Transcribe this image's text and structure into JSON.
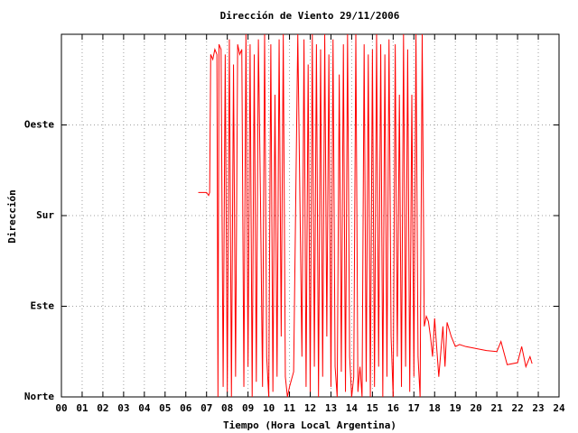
{
  "chart_data": {
    "type": "line",
    "title": "Dirección de Viento 29/11/2006",
    "x_label": "Tiempo (Hora Local Argentina)",
    "y_label": "Dirección",
    "xlim": [
      0,
      24
    ],
    "ylim": [
      0,
      360
    ],
    "xticks": [
      {
        "value": 0,
        "label": "00"
      },
      {
        "value": 1,
        "label": "01"
      },
      {
        "value": 2,
        "label": "02"
      },
      {
        "value": 3,
        "label": "03"
      },
      {
        "value": 4,
        "label": "04"
      },
      {
        "value": 5,
        "label": "05"
      },
      {
        "value": 6,
        "label": "06"
      },
      {
        "value": 7,
        "label": "07"
      },
      {
        "value": 8,
        "label": "08"
      },
      {
        "value": 9,
        "label": "09"
      },
      10,
      11,
      12,
      13,
      14,
      15,
      16,
      17,
      18,
      19,
      20,
      21,
      22,
      23,
      24
    ],
    "yticks": [
      {
        "value": 0,
        "label": "Norte"
      },
      {
        "value": 90,
        "label": "Este"
      },
      {
        "value": 180,
        "label": "Sur"
      },
      {
        "value": 270,
        "label": "Oeste"
      }
    ],
    "grid": true,
    "x": [
      6.6,
      7.0,
      7.1,
      7.15,
      7.2,
      7.3,
      7.4,
      7.5,
      7.55,
      7.6,
      7.7,
      7.8,
      7.9,
      8.0,
      8.1,
      8.2,
      8.3,
      8.4,
      8.5,
      8.6,
      8.7,
      8.8,
      8.9,
      9.0,
      9.1,
      9.2,
      9.3,
      9.4,
      9.5,
      9.6,
      9.7,
      9.8,
      9.9,
      10.0,
      10.1,
      10.2,
      10.3,
      10.4,
      10.5,
      10.6,
      10.7,
      10.8,
      10.9,
      11.0,
      11.2,
      11.4,
      11.6,
      11.7,
      11.8,
      11.9,
      12.0,
      12.1,
      12.2,
      12.3,
      12.4,
      12.5,
      12.6,
      12.7,
      12.8,
      12.9,
      13.0,
      13.1,
      13.2,
      13.3,
      13.4,
      13.5,
      13.6,
      13.7,
      13.8,
      13.9,
      14.0,
      14.1,
      14.2,
      14.3,
      14.4,
      14.5,
      14.6,
      14.7,
      14.8,
      14.9,
      15.0,
      15.1,
      15.2,
      15.3,
      15.4,
      15.5,
      15.6,
      15.7,
      15.8,
      15.9,
      16.0,
      16.1,
      16.2,
      16.3,
      16.4,
      16.5,
      16.6,
      16.7,
      16.8,
      16.9,
      17.0,
      17.1,
      17.2,
      17.3,
      17.4,
      17.5,
      17.6,
      17.7,
      17.8,
      17.9,
      18.0,
      18.2,
      18.4,
      18.5,
      18.6,
      18.8,
      19.0,
      19.2,
      19.5,
      20.0,
      20.5,
      21.0,
      21.2,
      21.5,
      22.0,
      22.2,
      22.4,
      22.6,
      22.7
    ],
    "series": [
      {
        "color": "#ff0000",
        "values": [
          203,
          203,
          200,
          203,
          340,
          335,
          345,
          340,
          0,
          350,
          345,
          10,
          340,
          5,
          355,
          0,
          330,
          20,
          350,
          340,
          345,
          10,
          360,
          30,
          350,
          0,
          340,
          15,
          355,
          200,
          10,
          360,
          40,
          0,
          350,
          5,
          300,
          20,
          355,
          60,
          360,
          20,
          0,
          10,
          25,
          360,
          40,
          355,
          10,
          330,
          5,
          360,
          30,
          350,
          0,
          345,
          20,
          360,
          60,
          340,
          10,
          355,
          30,
          0,
          320,
          25,
          350,
          5,
          360,
          40,
          0,
          20,
          360,
          5,
          30,
          0,
          350,
          15,
          340,
          0,
          345,
          10,
          360,
          30,
          350,
          0,
          340,
          20,
          355,
          60,
          0,
          350,
          40,
          300,
          10,
          360,
          30,
          345,
          5,
          300,
          20,
          360,
          40,
          0,
          360,
          70,
          80,
          75,
          60,
          40,
          78,
          20,
          70,
          30,
          74,
          60,
          50,
          52,
          50,
          48,
          46,
          45,
          55,
          32,
          34,
          50,
          30,
          40,
          33
        ]
      }
    ]
  }
}
